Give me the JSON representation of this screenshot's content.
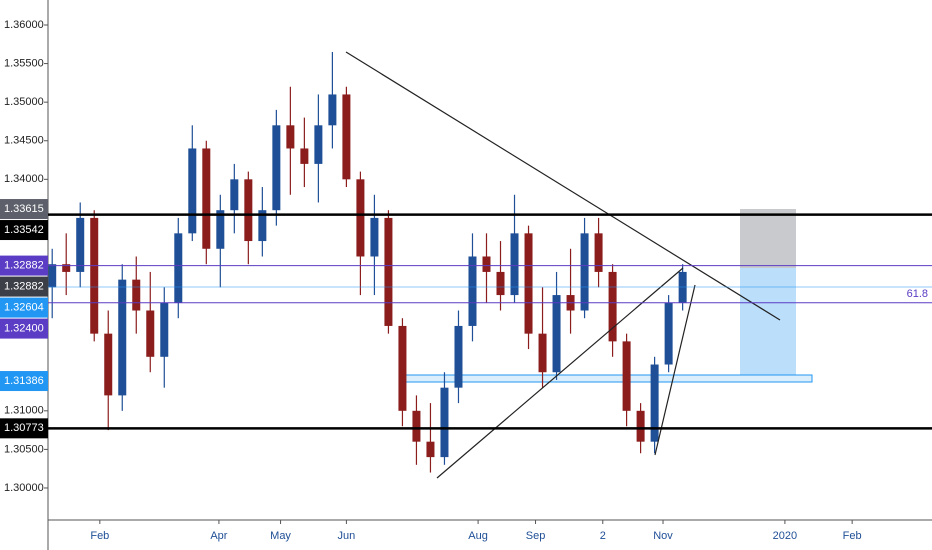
{
  "chart_data": {
    "type": "candlestick",
    "x": [
      0,
      1,
      2,
      3,
      4,
      5,
      6,
      7,
      8,
      9,
      10,
      11,
      12,
      13,
      14,
      15,
      16,
      17,
      18,
      19,
      20,
      21,
      22,
      23,
      24,
      25,
      26,
      27,
      28,
      29,
      30,
      31,
      32,
      33,
      34,
      35,
      36,
      37,
      38,
      39,
      40,
      41,
      42,
      43,
      44,
      45
    ],
    "open": [
      1.326,
      1.329,
      1.328,
      1.335,
      1.32,
      1.312,
      1.327,
      1.323,
      1.317,
      1.324,
      1.333,
      1.344,
      1.331,
      1.336,
      1.34,
      1.332,
      1.336,
      1.347,
      1.344,
      1.342,
      1.347,
      1.351,
      1.34,
      1.33,
      1.335,
      1.321,
      1.31,
      1.306,
      1.304,
      1.313,
      1.321,
      1.33,
      1.328,
      1.325,
      1.333,
      1.32,
      1.315,
      1.325,
      1.323,
      1.333,
      1.328,
      1.319,
      1.31,
      1.306,
      1.316,
      1.324
    ],
    "high": [
      1.331,
      1.333,
      1.337,
      1.336,
      1.323,
      1.329,
      1.33,
      1.328,
      1.326,
      1.335,
      1.347,
      1.345,
      1.338,
      1.342,
      1.341,
      1.339,
      1.349,
      1.352,
      1.348,
      1.351,
      1.3565,
      1.352,
      1.341,
      1.338,
      1.336,
      1.322,
      1.312,
      1.311,
      1.315,
      1.323,
      1.333,
      1.333,
      1.332,
      1.338,
      1.334,
      1.326,
      1.328,
      1.331,
      1.335,
      1.335,
      1.329,
      1.32,
      1.311,
      1.317,
      1.325,
      1.329
    ],
    "low": [
      1.322,
      1.325,
      1.326,
      1.319,
      1.3075,
      1.31,
      1.32,
      1.315,
      1.313,
      1.322,
      1.332,
      1.329,
      1.326,
      1.333,
      1.329,
      1.33,
      1.334,
      1.338,
      1.339,
      1.337,
      1.344,
      1.339,
      1.325,
      1.325,
      1.32,
      1.308,
      1.303,
      1.302,
      1.303,
      1.311,
      1.319,
      1.324,
      1.323,
      1.324,
      1.318,
      1.313,
      1.314,
      1.32,
      1.322,
      1.326,
      1.317,
      1.308,
      1.3045,
      1.3045,
      1.315,
      1.323
    ],
    "close": [
      1.329,
      1.328,
      1.335,
      1.32,
      1.312,
      1.327,
      1.323,
      1.317,
      1.324,
      1.333,
      1.344,
      1.331,
      1.336,
      1.34,
      1.332,
      1.336,
      1.347,
      1.344,
      1.342,
      1.347,
      1.351,
      1.34,
      1.33,
      1.335,
      1.321,
      1.31,
      1.306,
      1.304,
      1.313,
      1.321,
      1.33,
      1.328,
      1.325,
      1.333,
      1.32,
      1.315,
      1.325,
      1.323,
      1.333,
      1.328,
      1.319,
      1.31,
      1.306,
      1.316,
      1.324,
      1.328
    ],
    "up_color": "#1f4f96",
    "down_color": "#8b1d1d",
    "xlim": [
      -0.3,
      62.8
    ],
    "xticks": [
      {
        "value": 3.4,
        "label": "Feb"
      },
      {
        "value": 11.9,
        "label": "Apr"
      },
      {
        "value": 16.3,
        "label": "May"
      },
      {
        "value": 21.0,
        "label": "Jun"
      },
      {
        "value": 30.4,
        "label": "Aug"
      },
      {
        "value": 34.5,
        "label": "Sep"
      },
      {
        "value": 39.3,
        "label": "2"
      },
      {
        "value": 43.6,
        "label": "Nov"
      },
      {
        "value": 52.3,
        "label": "2020"
      },
      {
        "value": 57.1,
        "label": "Feb"
      }
    ],
    "ylim": [
      1.29585,
      1.36324
    ],
    "yticks": [
      {
        "value": 1.36,
        "label": "1.36000"
      },
      {
        "value": 1.355,
        "label": "1.35500"
      },
      {
        "value": 1.35,
        "label": "1.35000"
      },
      {
        "value": 1.345,
        "label": "1.34500"
      },
      {
        "value": 1.34,
        "label": "1.34000"
      },
      {
        "value": 1.31,
        "label": "1.31000"
      },
      {
        "value": 1.305,
        "label": "1.30500"
      },
      {
        "value": 1.3,
        "label": "1.30000"
      }
    ],
    "levels": [
      {
        "value": 1.33615,
        "label": "1.33615",
        "color": "#5d606b",
        "line": false
      },
      {
        "value": 1.33542,
        "label": "1.33542",
        "color": "#000000",
        "line": true
      },
      {
        "value": 1.32882,
        "label": "1.32882",
        "color": "#5b3cc4",
        "line": true
      },
      {
        "value": 1.32882,
        "label": "1.32882",
        "color": "#3c3f47",
        "line": false
      },
      {
        "value": 1.32604,
        "label": "1.32604",
        "color": "#2196f3",
        "line": true
      },
      {
        "value": 1.324,
        "label": "1.32400",
        "color": "#5b3cc4",
        "line": true
      },
      {
        "value": 1.31386,
        "label": "1.31386",
        "color": "#2196f3",
        "line": false
      },
      {
        "value": 1.30773,
        "label": "1.30773",
        "color": "#000000",
        "line": true
      }
    ],
    "annotation": "61.8"
  }
}
